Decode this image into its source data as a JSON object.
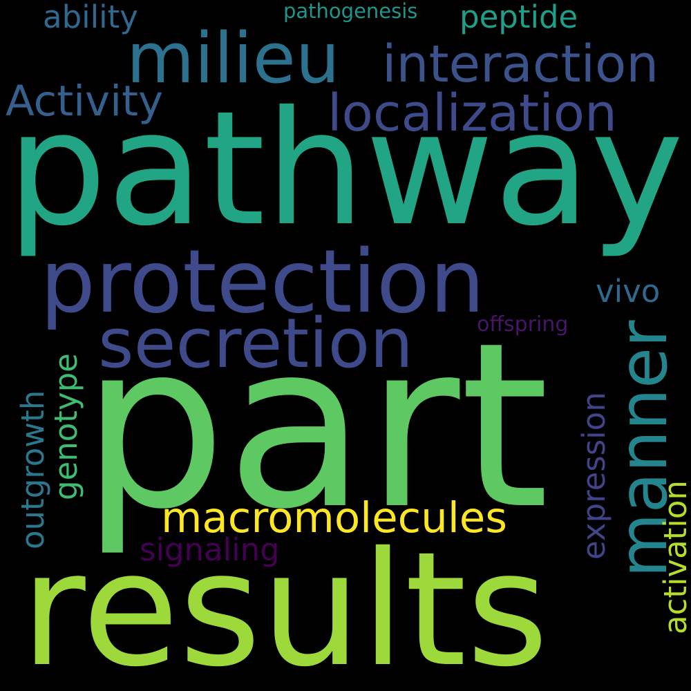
{
  "words": [
    {
      "text": "pathway",
      "color": "#21a585"
    },
    {
      "text": "part",
      "color": "#5ec962"
    },
    {
      "text": "results",
      "color": "#9dd93b"
    },
    {
      "text": "protection",
      "color": "#3f4a8a"
    },
    {
      "text": "milieu",
      "color": "#2c728e"
    },
    {
      "text": "secretion",
      "color": "#3e4a89"
    },
    {
      "text": "manner",
      "color": "#25858e"
    },
    {
      "text": "interaction",
      "color": "#3b528b"
    },
    {
      "text": "localization",
      "color": "#3e4a89"
    },
    {
      "text": "macromolecules",
      "color": "#fde725"
    },
    {
      "text": "Activity",
      "color": "#355f8d"
    },
    {
      "text": "expression",
      "color": "#414487"
    },
    {
      "text": "outgrowth",
      "color": "#2a788e"
    },
    {
      "text": "genotype",
      "color": "#3fbc73"
    },
    {
      "text": "activation",
      "color": "#b5de2b"
    },
    {
      "text": "signaling",
      "color": "#440154"
    },
    {
      "text": "vivo",
      "color": "#31688e"
    },
    {
      "text": "ability",
      "color": "#31688e"
    },
    {
      "text": "peptide",
      "color": "#1f9e89"
    },
    {
      "text": "pathogenesis",
      "color": "#1f968b"
    },
    {
      "text": "offspring",
      "color": "#481668"
    }
  ]
}
